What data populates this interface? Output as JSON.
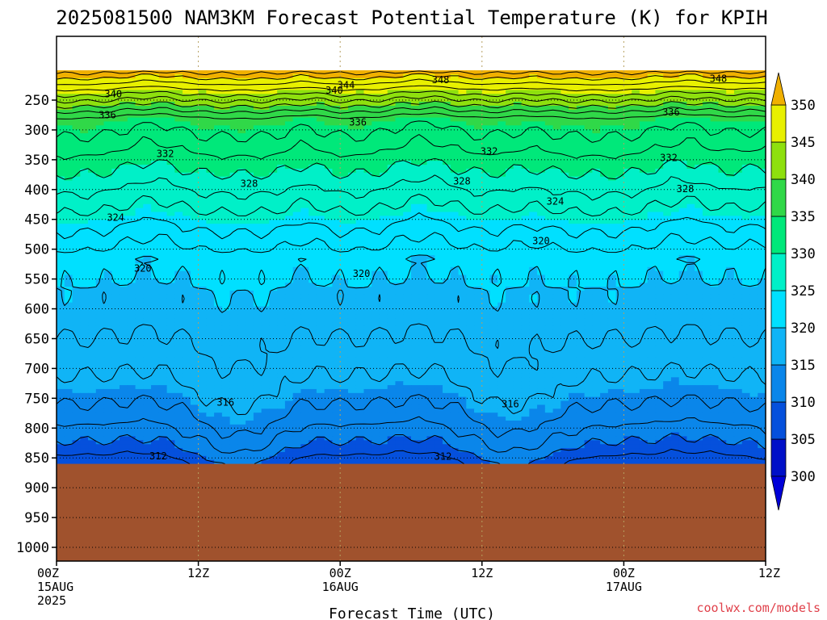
{
  "chart_data": {
    "type": "heatmap",
    "title": "2025081500 NAM3KM Forecast Potential Temperature (K) for KPIH",
    "xlabel": "Forecast Time (UTC)",
    "ylabel": "",
    "x_ticks": [
      {
        "hour": 0,
        "line1": "00Z",
        "line2": "15AUG",
        "line3": "2025"
      },
      {
        "hour": 12,
        "line1": "12Z",
        "line2": "",
        "line3": ""
      },
      {
        "hour": 24,
        "line1": "00Z",
        "line2": "16AUG",
        "line3": ""
      },
      {
        "hour": 36,
        "line1": "12Z",
        "line2": "",
        "line3": ""
      },
      {
        "hour": 48,
        "line1": "00Z",
        "line2": "17AUG",
        "line3": ""
      },
      {
        "hour": 60,
        "line1": "12Z",
        "line2": "",
        "line3": ""
      }
    ],
    "xlim": [
      0,
      60
    ],
    "y_axis": "pressure (hPa), inverted",
    "y_ticks": [
      250,
      300,
      350,
      400,
      450,
      500,
      550,
      600,
      650,
      700,
      750,
      800,
      850,
      900,
      950,
      1000
    ],
    "ylim": [
      1025,
      200
    ],
    "surface_pressure_hPa": 860,
    "colorbar": {
      "levels": [
        300,
        305,
        310,
        315,
        320,
        325,
        330,
        335,
        340,
        345,
        350
      ],
      "colors": [
        "#0010c8",
        "#0550dc",
        "#0a86ea",
        "#10b4f6",
        "#00e0ff",
        "#00f0c8",
        "#00e87a",
        "#30d848",
        "#8ee00e",
        "#e8f000",
        "#ffd400"
      ],
      "under_color": "#0000d8",
      "over_color": "#f0b000",
      "extend": "both"
    },
    "contour_interval_K": 2,
    "contour_labels": [
      {
        "text": "348",
        "hour": 32.5,
        "p": 216
      },
      {
        "text": "348",
        "hour": 56,
        "p": 214
      },
      {
        "text": "344",
        "hour": 24.5,
        "p": 225
      },
      {
        "text": "340",
        "hour": 4.8,
        "p": 240
      },
      {
        "text": "340",
        "hour": 23.5,
        "p": 234
      },
      {
        "text": "336",
        "hour": 4.3,
        "p": 275
      },
      {
        "text": "336",
        "hour": 25.5,
        "p": 287
      },
      {
        "text": "336",
        "hour": 52,
        "p": 270
      },
      {
        "text": "332",
        "hour": 9.2,
        "p": 340
      },
      {
        "text": "332",
        "hour": 36.6,
        "p": 336
      },
      {
        "text": "332",
        "hour": 51.8,
        "p": 347
      },
      {
        "text": "328",
        "hour": 16.3,
        "p": 390
      },
      {
        "text": "328",
        "hour": 34.3,
        "p": 386
      },
      {
        "text": "328",
        "hour": 53.2,
        "p": 399
      },
      {
        "text": "324",
        "hour": 5.0,
        "p": 447
      },
      {
        "text": "324",
        "hour": 42.2,
        "p": 420
      },
      {
        "text": "320",
        "hour": 7.3,
        "p": 532
      },
      {
        "text": "320",
        "hour": 25.8,
        "p": 541
      },
      {
        "text": "320",
        "hour": 41.0,
        "p": 486
      },
      {
        "text": "316",
        "hour": 14.3,
        "p": 757
      },
      {
        "text": "316",
        "hour": 38.4,
        "p": 760
      },
      {
        "text": "312",
        "hour": 8.6,
        "p": 847
      },
      {
        "text": "312",
        "hour": 32.7,
        "p": 848
      }
    ]
  },
  "credit": "coolwx.com/models"
}
